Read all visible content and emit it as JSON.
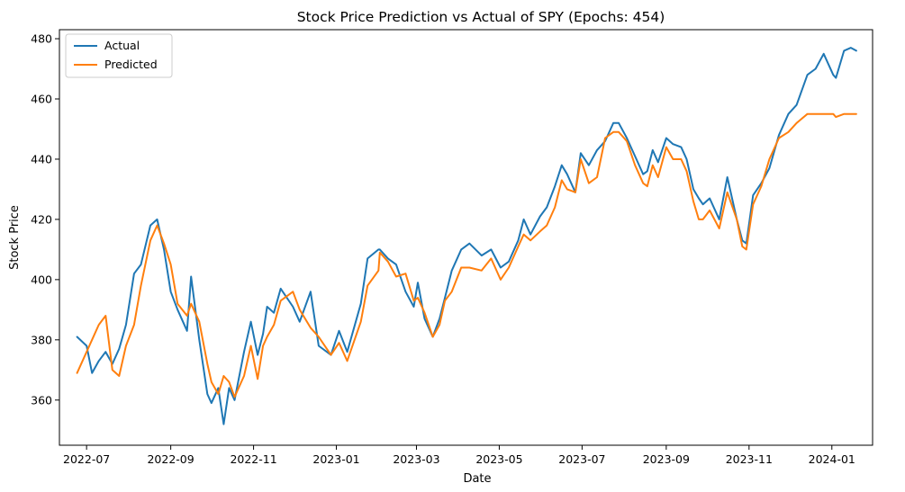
{
  "chart_data": {
    "type": "line",
    "title": "Stock Price Prediction vs Actual of SPY (Epochs: 454)",
    "xlabel": "Date",
    "ylabel": "Stock Price",
    "xlim": [
      "2022-06-11",
      "2024-01-31"
    ],
    "ylim": [
      345,
      483
    ],
    "x_ticks": [
      "2022-07-01",
      "2022-09-01",
      "2022-11-01",
      "2023-01-01",
      "2023-03-01",
      "2023-05-01",
      "2023-07-01",
      "2023-09-01",
      "2023-11-01",
      "2024-01-01"
    ],
    "x_tick_labels": [
      "2022-07",
      "2022-09",
      "2022-11",
      "2023-01",
      "2023-03",
      "2023-05",
      "2023-07",
      "2023-09",
      "2023-11",
      "2024-01"
    ],
    "y_ticks": [
      360,
      380,
      400,
      420,
      440,
      460,
      480
    ],
    "y_tick_labels": [
      "360",
      "380",
      "400",
      "420",
      "440",
      "460",
      "480"
    ],
    "grid": false,
    "legend": {
      "position": "top-left"
    },
    "series": [
      {
        "name": "Actual",
        "color": "#1f77b4",
        "x": [
          "2022-06-24",
          "2022-07-01",
          "2022-07-05",
          "2022-07-10",
          "2022-07-15",
          "2022-07-20",
          "2022-07-25",
          "2022-07-30",
          "2022-08-05",
          "2022-08-10",
          "2022-08-17",
          "2022-08-22",
          "2022-08-27",
          "2022-09-01",
          "2022-09-06",
          "2022-09-13",
          "2022-09-16",
          "2022-09-22",
          "2022-09-28",
          "2022-10-01",
          "2022-10-06",
          "2022-10-10",
          "2022-10-14",
          "2022-10-18",
          "2022-10-25",
          "2022-10-30",
          "2022-11-04",
          "2022-11-08",
          "2022-11-11",
          "2022-11-16",
          "2022-11-21",
          "2022-11-30",
          "2022-12-05",
          "2022-12-13",
          "2022-12-19",
          "2022-12-28",
          "2023-01-03",
          "2023-01-09",
          "2023-01-19",
          "2023-01-24",
          "2023-02-01",
          "2023-02-02",
          "2023-02-08",
          "2023-02-14",
          "2023-02-21",
          "2023-02-27",
          "2023-03-02",
          "2023-03-07",
          "2023-03-13",
          "2023-03-18",
          "2023-03-22",
          "2023-03-27",
          "2023-04-03",
          "2023-04-09",
          "2023-04-18",
          "2023-04-25",
          "2023-05-02",
          "2023-05-08",
          "2023-05-15",
          "2023-05-19",
          "2023-05-24",
          "2023-05-31",
          "2023-06-05",
          "2023-06-11",
          "2023-06-16",
          "2023-06-20",
          "2023-06-26",
          "2023-06-30",
          "2023-07-06",
          "2023-07-12",
          "2023-07-18",
          "2023-07-24",
          "2023-07-28",
          "2023-08-03",
          "2023-08-09",
          "2023-08-15",
          "2023-08-18",
          "2023-08-22",
          "2023-08-26",
          "2023-09-01",
          "2023-09-06",
          "2023-09-12",
          "2023-09-16",
          "2023-09-21",
          "2023-09-25",
          "2023-09-28",
          "2023-10-03",
          "2023-10-10",
          "2023-10-16",
          "2023-10-23",
          "2023-10-27",
          "2023-10-30",
          "2023-11-04",
          "2023-11-10",
          "2023-11-16",
          "2023-11-23",
          "2023-11-30",
          "2023-12-06",
          "2023-12-14",
          "2023-12-20",
          "2023-12-26",
          "2024-01-02",
          "2024-01-04",
          "2024-01-10",
          "2024-01-15",
          "2024-01-19"
        ],
        "values": [
          381,
          378,
          369,
          373,
          376,
          372,
          377,
          385,
          402,
          405,
          418,
          420,
          410,
          396,
          390,
          383,
          401,
          380,
          362,
          359,
          364,
          352,
          364,
          360,
          376,
          386,
          375,
          382,
          391,
          389,
          397,
          391,
          386,
          396,
          378,
          375,
          383,
          376,
          392,
          407,
          410,
          410,
          407,
          405,
          396,
          391,
          399,
          387,
          381,
          387,
          394,
          403,
          410,
          412,
          408,
          410,
          404,
          406,
          413,
          420,
          415,
          421,
          424,
          431,
          438,
          435,
          429,
          442,
          438,
          443,
          446,
          452,
          452,
          447,
          441,
          435,
          436,
          443,
          439,
          447,
          445,
          444,
          440,
          430,
          427,
          425,
          427,
          420,
          434,
          420,
          413,
          412,
          428,
          432,
          437,
          448,
          455,
          458,
          468,
          470,
          475,
          468,
          467,
          476,
          477,
          476
        ]
      },
      {
        "name": "Predicted",
        "color": "#ff7f0e",
        "x": [
          "2022-06-24",
          "2022-07-01",
          "2022-07-05",
          "2022-07-10",
          "2022-07-15",
          "2022-07-20",
          "2022-07-25",
          "2022-07-30",
          "2022-08-05",
          "2022-08-10",
          "2022-08-17",
          "2022-08-22",
          "2022-08-27",
          "2022-09-01",
          "2022-09-06",
          "2022-09-13",
          "2022-09-16",
          "2022-09-22",
          "2022-09-28",
          "2022-10-01",
          "2022-10-06",
          "2022-10-10",
          "2022-10-14",
          "2022-10-18",
          "2022-10-25",
          "2022-10-30",
          "2022-11-04",
          "2022-11-08",
          "2022-11-11",
          "2022-11-16",
          "2022-11-21",
          "2022-11-30",
          "2022-12-05",
          "2022-12-13",
          "2022-12-19",
          "2022-12-28",
          "2023-01-03",
          "2023-01-09",
          "2023-01-19",
          "2023-01-24",
          "2023-02-01",
          "2023-02-02",
          "2023-02-08",
          "2023-02-14",
          "2023-02-21",
          "2023-02-27",
          "2023-03-02",
          "2023-03-07",
          "2023-03-13",
          "2023-03-18",
          "2023-03-22",
          "2023-03-27",
          "2023-04-03",
          "2023-04-09",
          "2023-04-18",
          "2023-04-25",
          "2023-05-02",
          "2023-05-08",
          "2023-05-15",
          "2023-05-19",
          "2023-05-24",
          "2023-05-31",
          "2023-06-05",
          "2023-06-11",
          "2023-06-16",
          "2023-06-20",
          "2023-06-26",
          "2023-06-30",
          "2023-07-06",
          "2023-07-12",
          "2023-07-18",
          "2023-07-24",
          "2023-07-28",
          "2023-08-03",
          "2023-08-09",
          "2023-08-15",
          "2023-08-18",
          "2023-08-22",
          "2023-08-26",
          "2023-09-01",
          "2023-09-06",
          "2023-09-12",
          "2023-09-16",
          "2023-09-21",
          "2023-09-25",
          "2023-09-28",
          "2023-10-03",
          "2023-10-10",
          "2023-10-16",
          "2023-10-23",
          "2023-10-27",
          "2023-10-30",
          "2023-11-04",
          "2023-11-10",
          "2023-11-16",
          "2023-11-23",
          "2023-11-30",
          "2023-12-06",
          "2023-12-14",
          "2023-12-20",
          "2023-12-26",
          "2024-01-02",
          "2024-01-04",
          "2024-01-10",
          "2024-01-15",
          "2024-01-19"
        ],
        "values": [
          369,
          376,
          380,
          385,
          388,
          370,
          368,
          378,
          385,
          398,
          413,
          418,
          412,
          405,
          392,
          388,
          392,
          386,
          372,
          366,
          362,
          368,
          366,
          361,
          368,
          378,
          367,
          378,
          381,
          385,
          393,
          396,
          390,
          384,
          381,
          375,
          379,
          373,
          386,
          398,
          403,
          409,
          406,
          401,
          402,
          393,
          394,
          389,
          381,
          385,
          393,
          396,
          404,
          404,
          403,
          407,
          400,
          404,
          411,
          415,
          413,
          416,
          418,
          424,
          433,
          430,
          429,
          440,
          432,
          434,
          447,
          449,
          449,
          446,
          438,
          432,
          431,
          438,
          434,
          444,
          440,
          440,
          436,
          426,
          420,
          420,
          423,
          417,
          429,
          420,
          411,
          410,
          425,
          431,
          440,
          447,
          449,
          452,
          455,
          455,
          455,
          455,
          454,
          455,
          455,
          455
        ]
      }
    ]
  }
}
